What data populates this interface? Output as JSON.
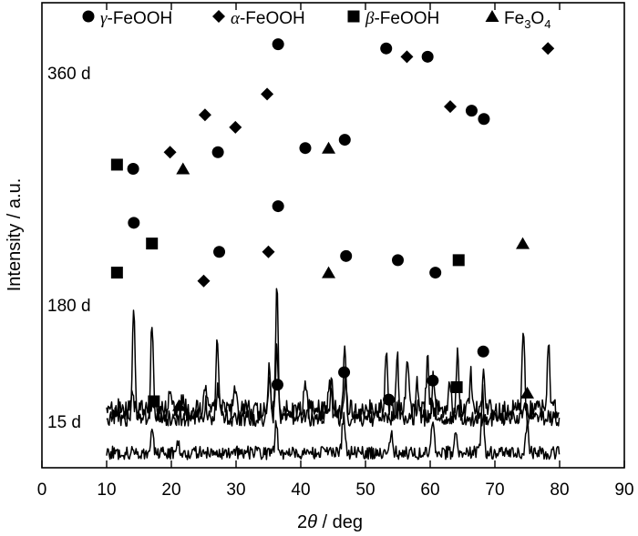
{
  "chart_data": {
    "type": "line",
    "xlabel": {
      "prefix": "2",
      "symbol": "θ",
      "suffix": " / deg"
    },
    "ylabel": "Intensity / a.u.",
    "xlim": [
      0,
      90
    ],
    "xticks": [
      0,
      10,
      20,
      30,
      40,
      50,
      60,
      70,
      80,
      90
    ],
    "y_tick_labels_shown": false,
    "legend": {
      "placement": "top",
      "entries": [
        {
          "marker": "circle",
          "greek": "γ",
          "text": "-FeOOH"
        },
        {
          "marker": "diamond",
          "greek": "α",
          "text": "-FeOOH"
        },
        {
          "marker": "square",
          "greek": "β",
          "text": "-FeOOH"
        },
        {
          "marker": "triangle",
          "text": "Fe",
          "sub1": "3",
          "mid": "O",
          "sub2": "4"
        }
      ]
    },
    "series": [
      {
        "name": "360 d",
        "baseline": 0.7,
        "noise": 0.12,
        "peaks": [
          [
            12.0,
            0.12
          ],
          [
            14.0,
            0.15
          ],
          [
            19.8,
            0.18
          ],
          [
            21.8,
            0.14
          ],
          [
            25.2,
            0.28
          ],
          [
            27.2,
            0.22
          ],
          [
            29.9,
            0.28
          ],
          [
            35.2,
            0.35
          ],
          [
            36.3,
            0.7
          ],
          [
            40.7,
            0.28
          ],
          [
            44.5,
            0.3
          ],
          [
            46.9,
            0.35
          ],
          [
            53.2,
            0.72
          ],
          [
            56.5,
            0.62
          ],
          [
            59.6,
            0.62
          ],
          [
            63.0,
            0.4
          ],
          [
            66.3,
            0.42
          ],
          [
            68.2,
            0.38
          ],
          [
            78.3,
            0.75
          ]
        ],
        "markers": [
          [
            11.6,
            3.65,
            "square"
          ],
          [
            14.1,
            3.6,
            "circle"
          ],
          [
            19.8,
            3.8,
            "diamond"
          ],
          [
            21.8,
            3.6,
            "triangle"
          ],
          [
            25.2,
            4.25,
            "diamond"
          ],
          [
            27.2,
            3.8,
            "circle"
          ],
          [
            29.9,
            4.1,
            "diamond"
          ],
          [
            34.8,
            4.5,
            "diamond"
          ],
          [
            36.5,
            5.1,
            "circle"
          ],
          [
            40.7,
            3.85,
            "circle"
          ],
          [
            44.3,
            3.85,
            "triangle"
          ],
          [
            46.8,
            3.95,
            "circle"
          ],
          [
            53.2,
            5.05,
            "circle"
          ],
          [
            56.4,
            4.95,
            "diamond"
          ],
          [
            59.6,
            4.95,
            "circle"
          ],
          [
            63.1,
            4.35,
            "diamond"
          ],
          [
            66.4,
            4.3,
            "circle"
          ],
          [
            68.3,
            4.2,
            "circle"
          ],
          [
            78.2,
            5.05,
            "diamond"
          ]
        ]
      },
      {
        "name": "180 d",
        "baseline": 0.6,
        "noise": 0.1,
        "peaks": [
          [
            11.5,
            0.1
          ],
          [
            14.2,
            1.4
          ],
          [
            17.0,
            1.15
          ],
          [
            25.3,
            0.2
          ],
          [
            27.1,
            0.9
          ],
          [
            35.1,
            0.6
          ],
          [
            36.3,
            1.55
          ],
          [
            44.8,
            0.45
          ],
          [
            46.8,
            0.95
          ],
          [
            54.9,
            0.8
          ],
          [
            58.0,
            0.45
          ],
          [
            60.5,
            0.55
          ],
          [
            64.2,
            0.8
          ],
          [
            74.4,
            1.1
          ]
        ],
        "markers": [
          [
            11.6,
            2.35,
            "square"
          ],
          [
            14.2,
            2.95,
            "circle"
          ],
          [
            17.0,
            2.7,
            "square"
          ],
          [
            25.0,
            2.25,
            "diamond"
          ],
          [
            27.4,
            2.6,
            "circle"
          ],
          [
            35.0,
            2.6,
            "diamond"
          ],
          [
            36.5,
            3.15,
            "circle"
          ],
          [
            44.3,
            2.35,
            "triangle"
          ],
          [
            47.0,
            2.55,
            "circle"
          ],
          [
            55.0,
            2.5,
            "circle"
          ],
          [
            60.8,
            2.35,
            "circle"
          ],
          [
            64.4,
            2.5,
            "square"
          ],
          [
            74.3,
            2.7,
            "triangle"
          ]
        ]
      },
      {
        "name": "15 d",
        "baseline": 0.18,
        "noise": 0.08,
        "peaks": [
          [
            17.0,
            0.25
          ],
          [
            21.0,
            0.15
          ],
          [
            36.2,
            0.35
          ],
          [
            46.6,
            0.45
          ],
          [
            54.0,
            0.2
          ],
          [
            60.4,
            0.4
          ],
          [
            64.0,
            0.3
          ],
          [
            68.1,
            0.75
          ],
          [
            75.0,
            0.35
          ]
        ],
        "markers": [
          [
            17.3,
            0.8,
            "square"
          ],
          [
            21.2,
            0.75,
            "triangle"
          ],
          [
            36.4,
            1.0,
            "circle"
          ],
          [
            46.7,
            1.15,
            "circle"
          ],
          [
            53.6,
            0.82,
            "circle"
          ],
          [
            60.4,
            1.05,
            "circle"
          ],
          [
            64.1,
            0.97,
            "square"
          ],
          [
            68.2,
            1.4,
            "circle"
          ],
          [
            75.0,
            0.9,
            "triangle"
          ]
        ]
      }
    ]
  }
}
